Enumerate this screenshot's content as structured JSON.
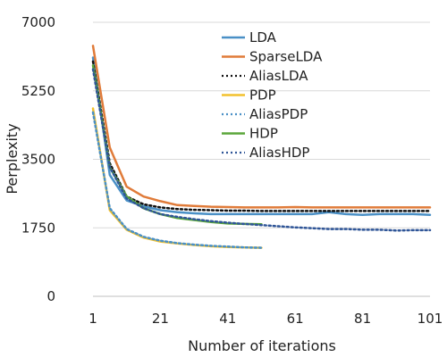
{
  "chart_data": {
    "type": "line",
    "title": "",
    "xlabel": "Number of iterations",
    "ylabel": "Perplexity",
    "xlim": [
      1,
      101
    ],
    "ylim": [
      0,
      7000
    ],
    "xticks": [
      1,
      21,
      41,
      61,
      81,
      101
    ],
    "yticks": [
      0,
      1750,
      3500,
      5250,
      7000
    ],
    "grid": "horizontal",
    "legend_position": "top-right",
    "series": [
      {
        "name": "LDA",
        "color": "#4a90c6",
        "dash": "solid",
        "x": [
          1,
          6,
          11,
          16,
          21,
          26,
          31,
          36,
          41,
          46,
          51,
          56,
          61,
          66,
          71,
          76,
          81,
          86,
          91,
          96,
          101
        ],
        "y": [
          6100,
          3100,
          2450,
          2300,
          2200,
          2150,
          2120,
          2100,
          2100,
          2100,
          2100,
          2100,
          2100,
          2100,
          2150,
          2100,
          2080,
          2100,
          2100,
          2100,
          2080
        ]
      },
      {
        "name": "SparseLDA",
        "color": "#e07b39",
        "dash": "solid",
        "x": [
          1,
          6,
          11,
          16,
          21,
          26,
          31,
          36,
          41,
          46,
          51,
          56,
          61,
          66,
          71,
          76,
          81,
          86,
          91,
          96,
          101
        ],
        "y": [
          6400,
          3800,
          2800,
          2550,
          2430,
          2330,
          2310,
          2290,
          2280,
          2270,
          2270,
          2270,
          2280,
          2270,
          2270,
          2270,
          2270,
          2270,
          2270,
          2270,
          2270
        ]
      },
      {
        "name": "AliasLDA",
        "color": "#111111",
        "dash": "dotted",
        "x": [
          1,
          6,
          11,
          16,
          21,
          26,
          31,
          36,
          41,
          46,
          51,
          56,
          61,
          66,
          71,
          76,
          81,
          86,
          91,
          96,
          101
        ],
        "y": [
          6000,
          3400,
          2550,
          2350,
          2270,
          2230,
          2210,
          2200,
          2190,
          2190,
          2180,
          2180,
          2180,
          2180,
          2180,
          2180,
          2180,
          2180,
          2180,
          2180,
          2180
        ]
      },
      {
        "name": "PDP",
        "color": "#f2c12e",
        "dash": "solid",
        "x": [
          1,
          6,
          11,
          16,
          21,
          26,
          31,
          36,
          41,
          46,
          51
        ],
        "y": [
          4800,
          2200,
          1700,
          1500,
          1400,
          1350,
          1310,
          1280,
          1260,
          1250,
          1240
        ]
      },
      {
        "name": "AliasPDP",
        "color": "#4a90c6",
        "dash": "dotted",
        "x": [
          1,
          6,
          11,
          16,
          21,
          26,
          31,
          36,
          41,
          46,
          51
        ],
        "y": [
          4700,
          2250,
          1720,
          1520,
          1420,
          1360,
          1320,
          1290,
          1270,
          1250,
          1240
        ]
      },
      {
        "name": "HDP",
        "color": "#5aa63a",
        "dash": "solid",
        "x": [
          1,
          6,
          11,
          16,
          21,
          26,
          31,
          36,
          41,
          46,
          51
        ],
        "y": [
          5900,
          3300,
          2550,
          2250,
          2100,
          2000,
          1950,
          1900,
          1860,
          1850,
          1840
        ]
      },
      {
        "name": "AliasHDP",
        "color": "#2f5597",
        "dash": "dotted",
        "x": [
          1,
          6,
          11,
          16,
          21,
          26,
          31,
          36,
          41,
          46,
          51,
          56,
          61,
          66,
          71,
          76,
          81,
          86,
          91,
          96,
          101
        ],
        "y": [
          5800,
          3300,
          2500,
          2250,
          2100,
          2030,
          1970,
          1920,
          1880,
          1850,
          1820,
          1790,
          1760,
          1740,
          1720,
          1720,
          1700,
          1700,
          1680,
          1690,
          1690
        ]
      }
    ]
  }
}
